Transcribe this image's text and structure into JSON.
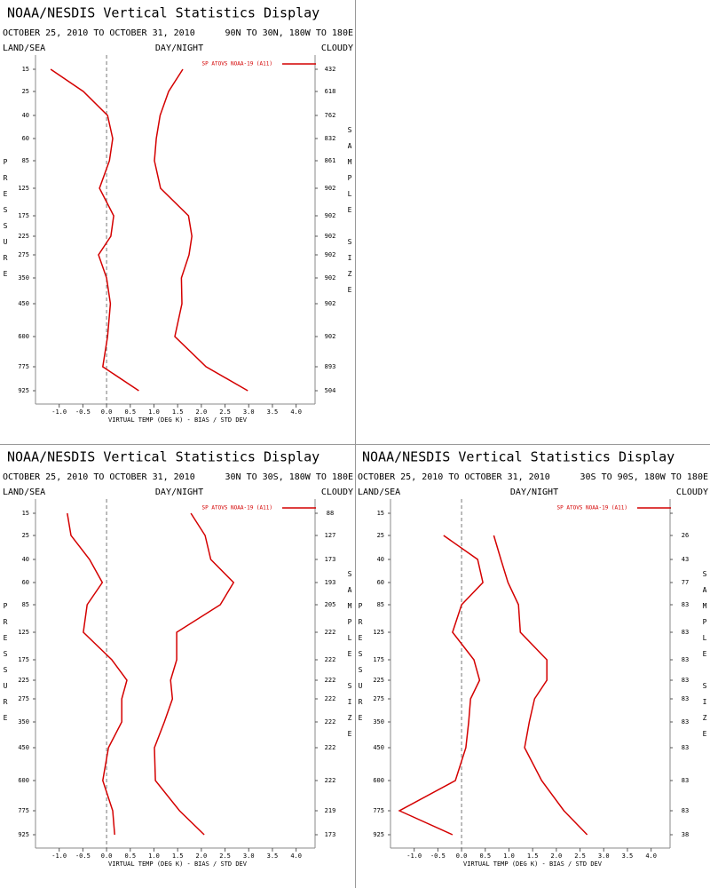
{
  "chart_data": [
    {
      "type": "line",
      "title": "NOAA/NESDIS Vertical Statistics Display",
      "dates": "OCTOBER 25, 2010 TO OCTOBER 31, 2010",
      "region": "90N TO 30N, 180W TO 180E",
      "land_sea": "LAND/SEA",
      "day_night": "DAY/NIGHT",
      "cloudy": "CLOUDY",
      "ylabel": "PRESSURE",
      "y2label": "SAMPLE SIZE",
      "xlabel": "VIRTUAL TEMP (DEG K) - BIAS / STD DEV",
      "legend": "SP ATOVS NOAA-19 (A11)",
      "categories": [
        15,
        25,
        40,
        60,
        85,
        125,
        175,
        225,
        275,
        350,
        450,
        600,
        775,
        925
      ],
      "sample_size": [
        432,
        618,
        762,
        832,
        861,
        902,
        902,
        902,
        902,
        902,
        902,
        902,
        893,
        504
      ],
      "series": [
        {
          "color": "#d40000",
          "values": [
            -1.18,
            -0.49,
            0.02,
            0.13,
            0.06,
            -0.15,
            0.15,
            0.09,
            -0.17,
            0.0,
            0.08,
            0.02,
            -0.08,
            0.68
          ]
        },
        {
          "color": "#d40000",
          "values": [
            1.61,
            1.31,
            1.13,
            1.05,
            1.01,
            1.14,
            1.73,
            1.8,
            1.74,
            1.58,
            1.59,
            1.44,
            2.1,
            2.98
          ]
        }
      ],
      "xlim": [
        -1.5,
        4.4
      ],
      "xticks": [
        {
          "value": -1,
          "label": "-1.0"
        },
        -0.5,
        {
          "value": 0,
          "label": "0.0"
        },
        0.5,
        {
          "value": 1,
          "label": "1.0"
        },
        1.5,
        {
          "value": 2,
          "label": "2.0"
        },
        2.5,
        {
          "value": 3,
          "label": "3.0"
        },
        3.5,
        {
          "value": 4,
          "label": "4.0"
        }
      ]
    },
    {
      "type": "line",
      "title": "NOAA/NESDIS Vertical Statistics Display",
      "dates": "OCTOBER 25, 2010 TO OCTOBER 31, 2010",
      "region": "30N TO 30S, 180W TO 180E",
      "land_sea": "LAND/SEA",
      "day_night": "DAY/NIGHT",
      "cloudy": "CLOUDY",
      "ylabel": "PRESSURE",
      "y2label": "SAMPLE SIZE",
      "xlabel": "VIRTUAL TEMP (DEG K) - BIAS / STD DEV",
      "legend": "SP ATOVS NOAA-19 (A11)",
      "categories": [
        15,
        25,
        40,
        60,
        85,
        125,
        175,
        225,
        275,
        350,
        450,
        600,
        775,
        925
      ],
      "sample_size": [
        88,
        127,
        173,
        193,
        205,
        222,
        222,
        222,
        222,
        222,
        222,
        222,
        219,
        173
      ],
      "series": [
        {
          "color": "#d40000",
          "values": [
            -0.83,
            -0.75,
            -0.36,
            -0.09,
            -0.41,
            -0.49,
            0.11,
            0.43,
            0.32,
            0.32,
            0.04,
            -0.08,
            0.13,
            0.17
          ]
        },
        {
          "color": "#d40000",
          "values": [
            1.78,
            2.08,
            2.2,
            2.68,
            2.4,
            1.48,
            1.48,
            1.35,
            1.39,
            1.22,
            1.01,
            1.03,
            1.54,
            2.06
          ]
        }
      ],
      "xlim": [
        -1.5,
        4.4
      ],
      "xticks": [
        {
          "value": -1,
          "label": "-1.0"
        },
        -0.5,
        {
          "value": 0,
          "label": "0.0"
        },
        0.5,
        {
          "value": 1,
          "label": "1.0"
        },
        1.5,
        {
          "value": 2,
          "label": "2.0"
        },
        2.5,
        {
          "value": 3,
          "label": "3.0"
        },
        3.5,
        {
          "value": 4,
          "label": "4.0"
        }
      ]
    },
    {
      "type": "line",
      "title": "NOAA/NESDIS Vertical Statistics Display",
      "dates": "OCTOBER 25, 2010 TO OCTOBER 31, 2010",
      "region": "30S TO 90S, 180W TO 180E",
      "land_sea": "LAND/SEA",
      "day_night": "DAY/NIGHT",
      "cloudy": "CLOUDY",
      "ylabel": "PRESSURE",
      "y2label": "SAMPLE SIZE",
      "xlabel": "VIRTUAL TEMP (DEG K) - BIAS / STD DEV",
      "legend": "SP ATOVS NOAA-19 (A11)",
      "categories": [
        15,
        25,
        40,
        60,
        85,
        125,
        175,
        225,
        275,
        350,
        450,
        600,
        775,
        925
      ],
      "sample_size": [
        null,
        26,
        43,
        77,
        83,
        83,
        83,
        83,
        83,
        83,
        83,
        83,
        83,
        38
      ],
      "series": [
        {
          "color": "#d40000",
          "values": [
            null,
            -0.38,
            0.34,
            0.45,
            0.0,
            -0.19,
            0.26,
            0.38,
            0.19,
            0.15,
            0.09,
            -0.13,
            -1.31,
            -0.19
          ]
        },
        {
          "color": "#d40000",
          "values": [
            null,
            0.68,
            0.83,
            0.98,
            1.2,
            1.24,
            1.8,
            1.8,
            1.54,
            1.43,
            1.33,
            1.69,
            2.16,
            2.65
          ]
        }
      ],
      "xlim": [
        -1.5,
        4.4
      ],
      "xticks": [
        {
          "value": -1,
          "label": "-1.0"
        },
        -0.5,
        {
          "value": 0,
          "label": "0.0"
        },
        0.5,
        {
          "value": 1,
          "label": "1.0"
        },
        1.5,
        {
          "value": 2,
          "label": "2.0"
        },
        2.5,
        {
          "value": 3,
          "label": "3.0"
        },
        3.5,
        {
          "value": 4,
          "label": "4.0"
        }
      ]
    }
  ]
}
